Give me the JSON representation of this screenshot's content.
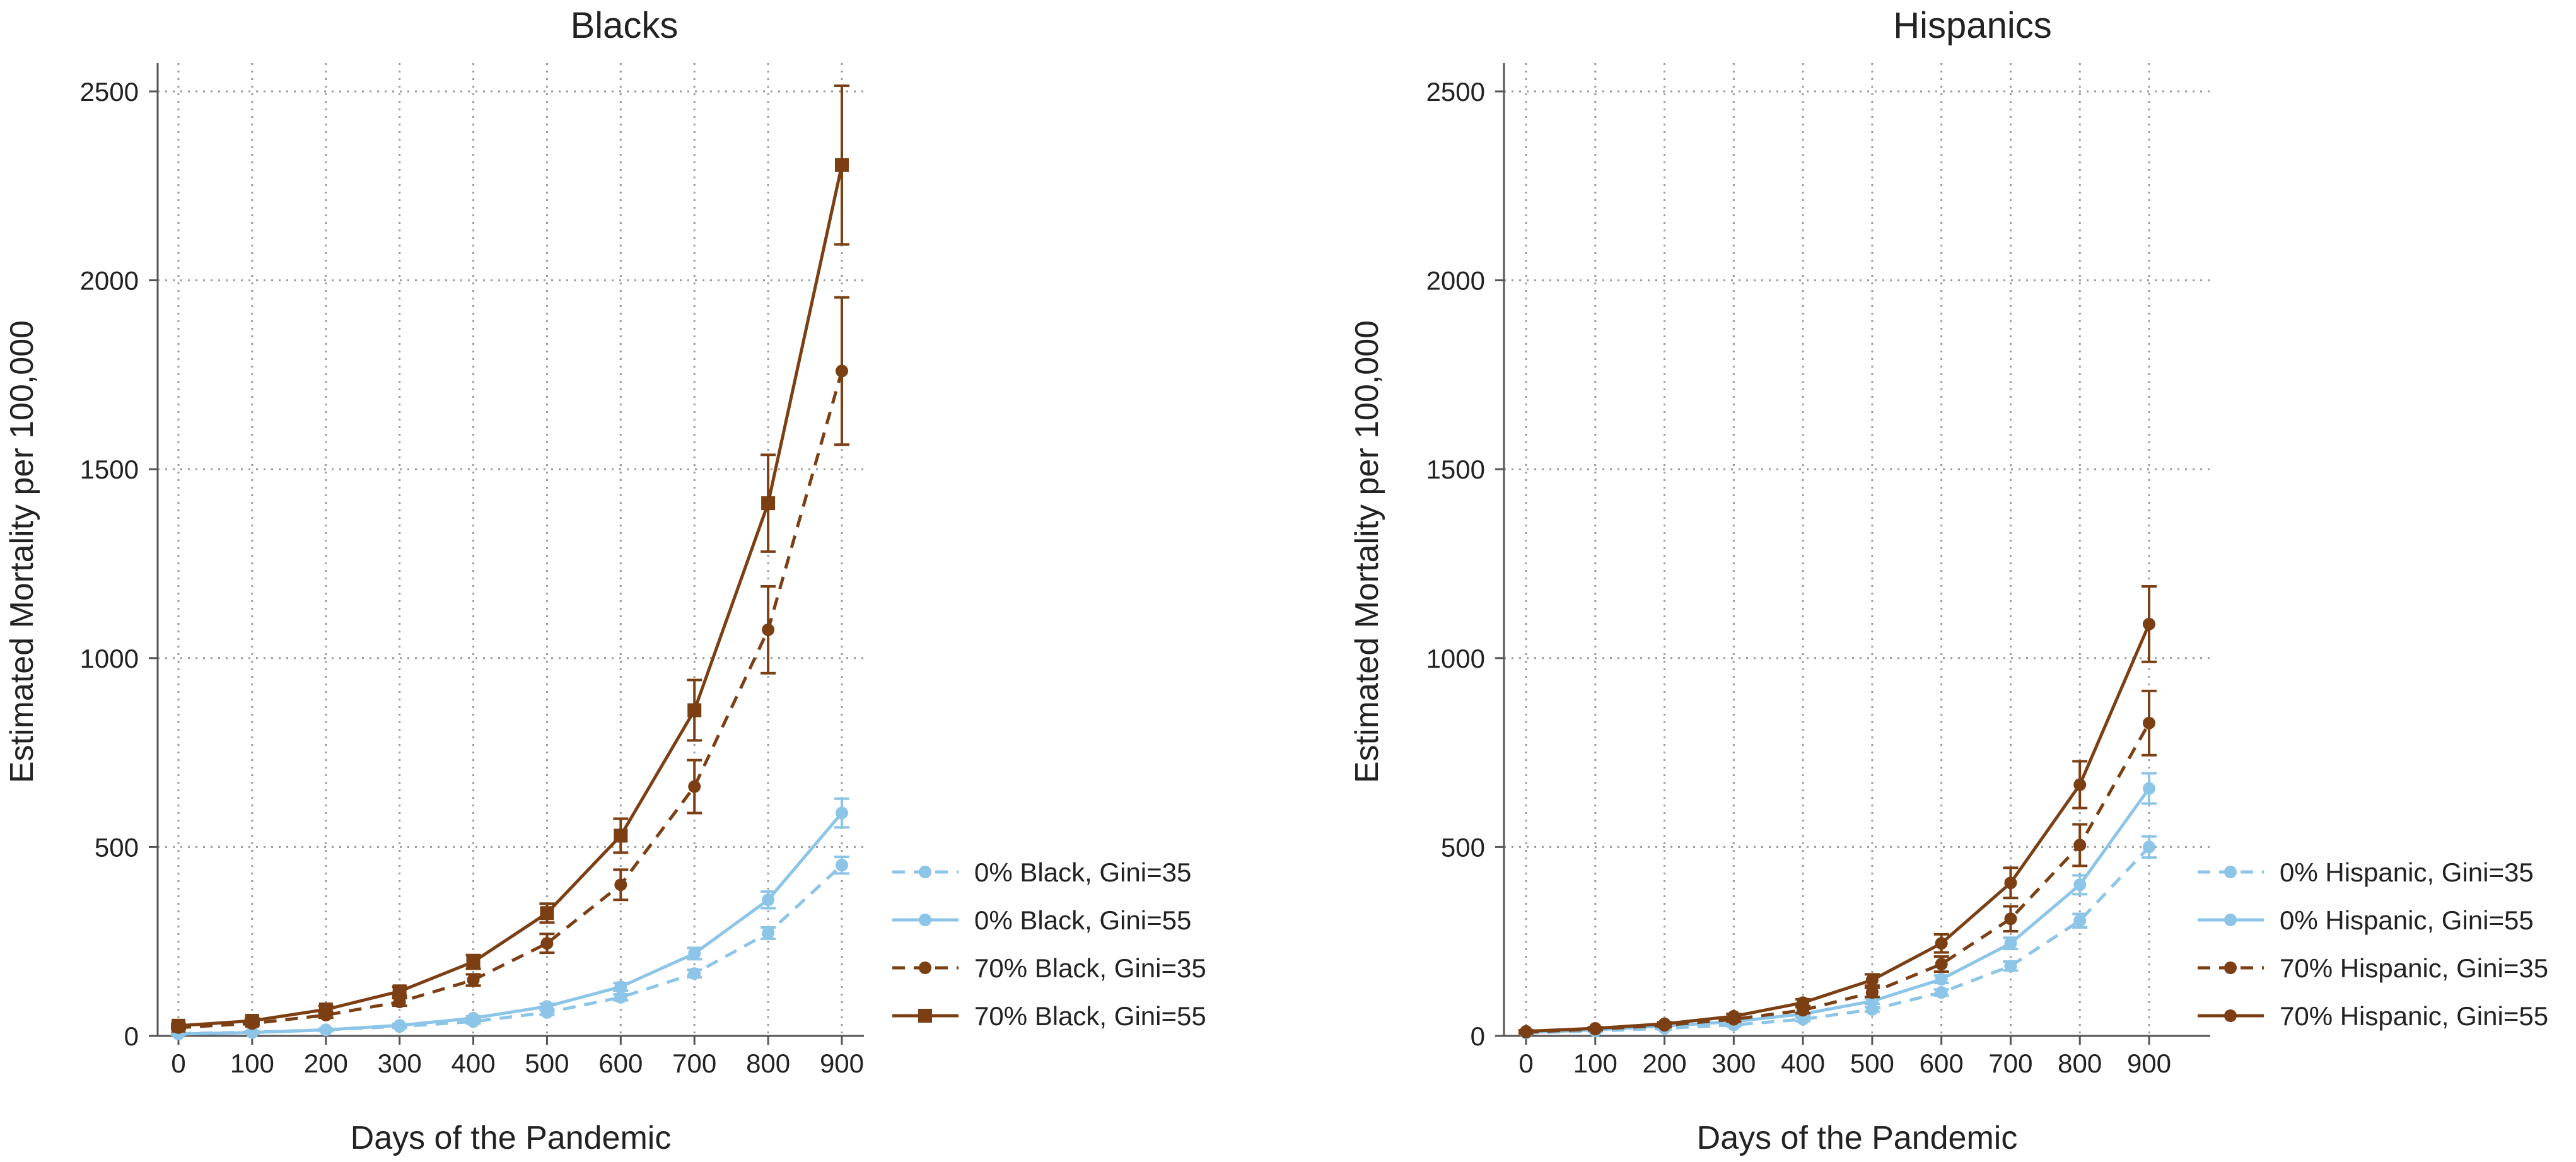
{
  "colors": {
    "light_blue": "#8cc5e8",
    "brown": "#7b3f13",
    "grid": "#9a9a9a",
    "axis": "#555555",
    "text": "#222222"
  },
  "chart_data": [
    {
      "type": "line",
      "title": "Blacks",
      "xlabel": "Days of the Pandemic",
      "ylabel": "Estimated Mortality per 100,000",
      "x": [
        0,
        100,
        200,
        300,
        400,
        500,
        600,
        700,
        800,
        900
      ],
      "xticks": [
        "0",
        "100",
        "200",
        "300",
        "400",
        "500",
        "600",
        "700",
        "800",
        "900"
      ],
      "yticks": [
        "0",
        "500",
        "1000",
        "1500",
        "2000",
        "2500"
      ],
      "ylim": [
        0,
        2500
      ],
      "grid": true,
      "legend_position": "right",
      "series": [
        {
          "name": "0% Black, Gini=35",
          "color": "light_blue",
          "dash": "dashed",
          "marker": "circle",
          "values": [
            6,
            10,
            16,
            25,
            38,
            62,
            102,
            165,
            272,
            452
          ],
          "err": [
            2,
            2,
            3,
            4,
            5,
            6,
            8,
            10,
            15,
            22
          ]
        },
        {
          "name": "0% Black, Gini=55",
          "color": "light_blue",
          "dash": "solid",
          "marker": "circle",
          "values": [
            5,
            9,
            16,
            28,
            47,
            78,
            130,
            218,
            360,
            590
          ],
          "err": [
            2,
            2,
            3,
            4,
            5,
            7,
            10,
            15,
            22,
            38
          ]
        },
        {
          "name": "70% Black, Gini=35",
          "color": "brown",
          "dash": "dashed",
          "marker": "circle",
          "values": [
            22,
            33,
            55,
            90,
            148,
            245,
            400,
            660,
            1075,
            1760
          ],
          "err": [
            4,
            5,
            7,
            10,
            15,
            25,
            40,
            70,
            115,
            195
          ]
        },
        {
          "name": "70% Black, Gini=55",
          "color": "brown",
          "dash": "solid",
          "marker": "square",
          "values": [
            27,
            40,
            70,
            118,
            196,
            325,
            530,
            862,
            1410,
            2305
          ],
          "err": [
            5,
            6,
            9,
            12,
            18,
            25,
            45,
            80,
            128,
            210
          ]
        }
      ]
    },
    {
      "type": "line",
      "title": "Hispanics",
      "xlabel": "Days of the Pandemic",
      "ylabel": "Estimated Mortality per 100,000",
      "x": [
        0,
        100,
        200,
        300,
        400,
        500,
        600,
        700,
        800,
        900
      ],
      "xticks": [
        "0",
        "100",
        "200",
        "300",
        "400",
        "500",
        "600",
        "700",
        "800",
        "900"
      ],
      "yticks": [
        "0",
        "500",
        "1000",
        "1500",
        "2000",
        "2500"
      ],
      "ylim": [
        0,
        2500
      ],
      "grid": true,
      "legend_position": "right",
      "series": [
        {
          "name": "0% Hispanic, Gini=35",
          "color": "light_blue",
          "dash": "dashed",
          "marker": "circle",
          "values": [
            8,
            13,
            20,
            29,
            44,
            70,
            115,
            185,
            305,
            500
          ],
          "err": [
            2,
            2,
            3,
            4,
            5,
            6,
            8,
            12,
            18,
            28
          ]
        },
        {
          "name": "0% Hispanic, Gini=55",
          "color": "light_blue",
          "dash": "solid",
          "marker": "circle",
          "values": [
            9,
            16,
            26,
            38,
            58,
            92,
            150,
            245,
            400,
            655
          ],
          "err": [
            2,
            2,
            3,
            4,
            5,
            7,
            10,
            15,
            25,
            40
          ]
        },
        {
          "name": "70% Hispanic, Gini=35",
          "color": "brown",
          "dash": "dashed",
          "marker": "circle",
          "values": [
            10,
            18,
            28,
            44,
            68,
            115,
            190,
            310,
            505,
            828
          ],
          "err": [
            3,
            3,
            4,
            6,
            8,
            12,
            20,
            33,
            55,
            85
          ]
        },
        {
          "name": "70% Hispanic, Gini=55",
          "color": "brown",
          "dash": "solid",
          "marker": "circle",
          "values": [
            12,
            20,
            32,
            52,
            88,
            148,
            245,
            405,
            665,
            1090
          ],
          "err": [
            3,
            3,
            4,
            6,
            9,
            15,
            24,
            40,
            62,
            100
          ]
        }
      ]
    }
  ]
}
